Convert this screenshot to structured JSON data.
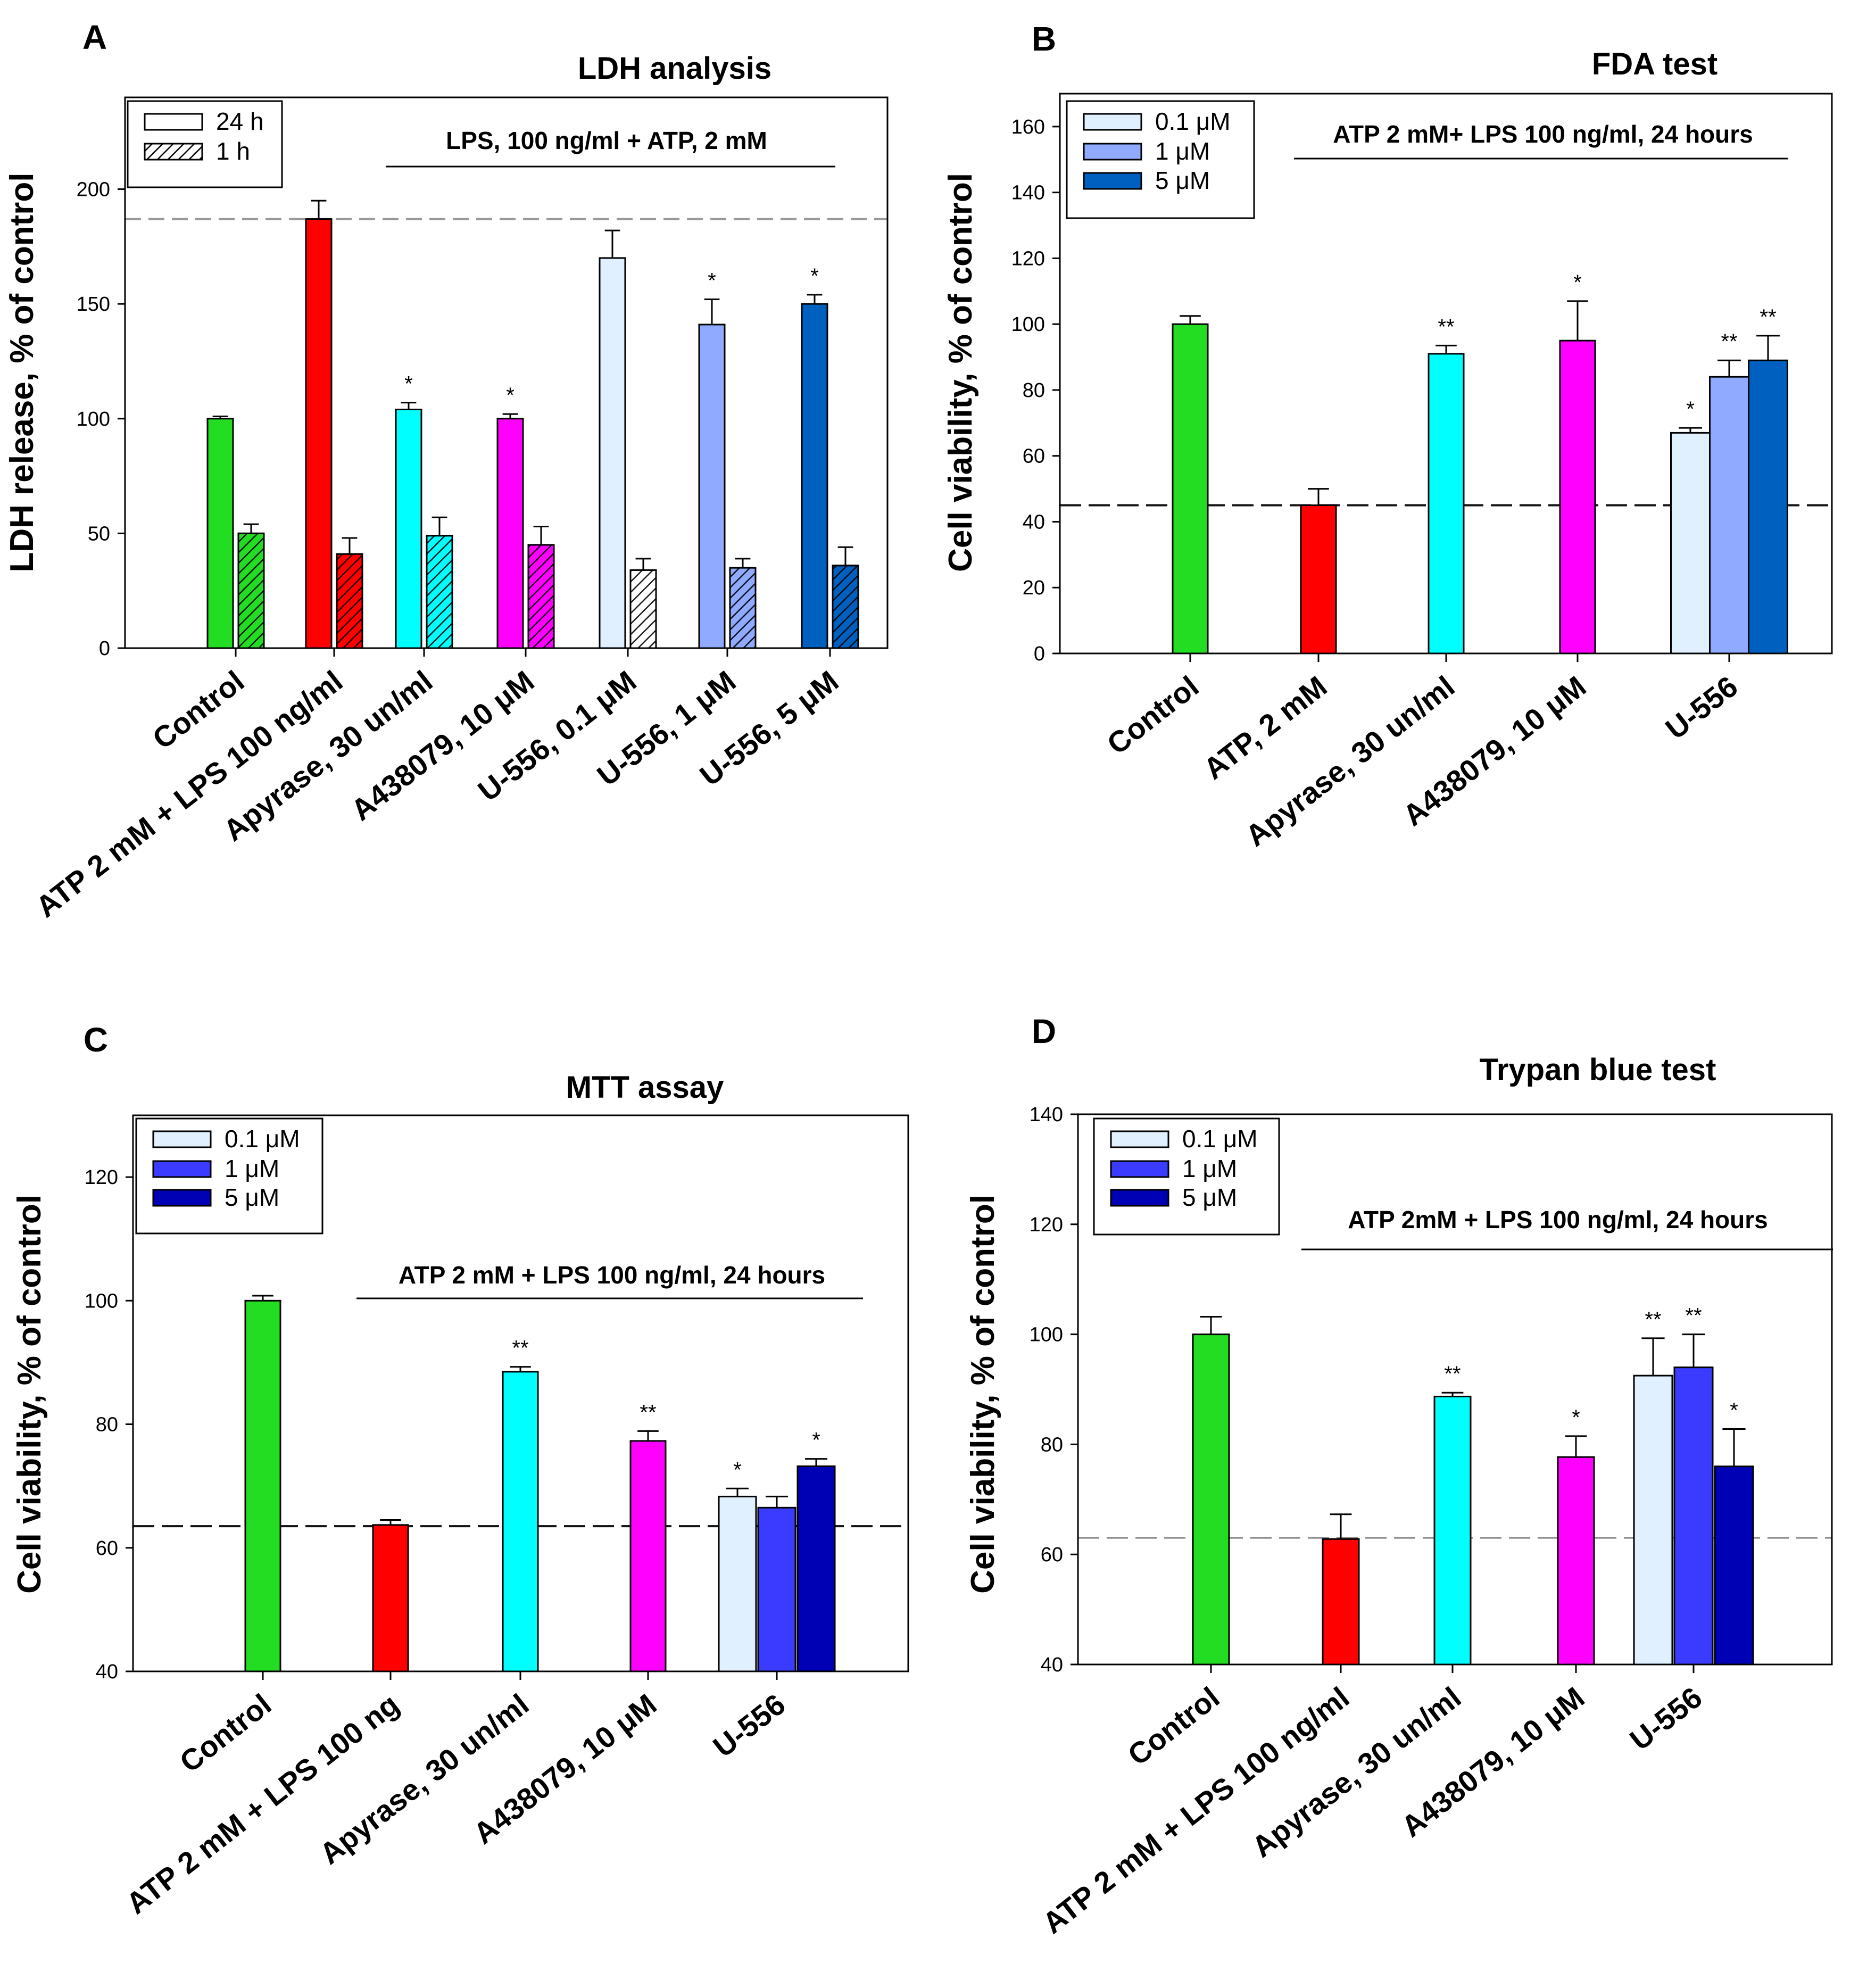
{
  "chart_data": [
    {
      "id": "A",
      "panel_label": "A",
      "type": "bar",
      "title": "LDH analysis",
      "ylabel": "LDH release, % of control",
      "ylim": [
        0,
        240
      ],
      "yticks": [
        0,
        50,
        100,
        150,
        200
      ],
      "reference_line": 187,
      "annotation": "LPS, 100 ng/ml + ATP, 2 mM",
      "legend": [
        {
          "label": "24 h",
          "color": "#ffffff",
          "pattern": "none"
        },
        {
          "label": "1 h",
          "color": "#ffffff",
          "pattern": "hatch"
        }
      ],
      "categories": [
        "Control",
        "ATP 2 mM + LPS 100 ng/ml",
        "Apyrase, 30 un/ml",
        "A438079,  10 μM",
        "U-556, 0.1 μM",
        "U-556, 1 μM",
        "U-556, 5 μM"
      ],
      "series": [
        {
          "name": "24 h",
          "pattern": "none",
          "values": [
            100,
            187,
            104,
            100,
            170,
            141,
            150
          ],
          "errors": [
            1,
            8,
            3,
            2,
            12,
            11,
            4
          ],
          "sig": [
            "",
            "",
            "*",
            "*",
            "",
            "*",
            "*"
          ],
          "colors": [
            "#22dd22",
            "#ff0000",
            "#00ffff",
            "#ff00ff",
            "#e0f0ff",
            "#8faaff",
            "#0060c0"
          ]
        },
        {
          "name": "1 h",
          "pattern": "hatch",
          "values": [
            50,
            41,
            49,
            45,
            34,
            35,
            36
          ],
          "errors": [
            4,
            7,
            8,
            8,
            5,
            4,
            8
          ],
          "sig": [
            "",
            "",
            "",
            "",
            "",
            "",
            ""
          ],
          "colors": [
            "#22dd22",
            "#ff0000",
            "#00ffff",
            "#ff00ff",
            "#ffffff",
            "#8faaff",
            "#0060c0"
          ]
        }
      ]
    },
    {
      "id": "B",
      "panel_label": "B",
      "type": "bar",
      "title": "FDA test",
      "ylabel": "Cell viability, % of control",
      "ylim": [
        0,
        170
      ],
      "yticks": [
        0,
        20,
        40,
        60,
        80,
        100,
        120,
        140,
        160
      ],
      "reference_line": 45,
      "annotation": "ATP 2 mM+ LPS 100 ng/ml, 24 hours",
      "legend": [
        {
          "label": "0.1 μM",
          "color": "#e0f0ff"
        },
        {
          "label": "1 μM",
          "color": "#8faaff"
        },
        {
          "label": "5  μM",
          "color": "#0060c0"
        }
      ],
      "categories": [
        "Control",
        "ATP, 2 mM",
        "Apyrase, 30 un/ml",
        "A438079, 10 μM",
        "U-556"
      ],
      "bars": [
        {
          "category": 0,
          "value": 100,
          "error": 2.5,
          "color": "#22dd22",
          "sig": ""
        },
        {
          "category": 1,
          "value": 45,
          "error": 5,
          "color": "#ff0000",
          "sig": ""
        },
        {
          "category": 2,
          "value": 91,
          "error": 2.5,
          "color": "#00ffff",
          "sig": "**"
        },
        {
          "category": 3,
          "value": 95,
          "error": 12,
          "color": "#ff00ff",
          "sig": "*"
        },
        {
          "category": 4,
          "group": [
            {
              "value": 67,
              "error": 1.5,
              "color": "#e0f0ff",
              "sig": "*"
            },
            {
              "value": 84,
              "error": 5,
              "color": "#8faaff",
              "sig": "**"
            },
            {
              "value": 89,
              "error": 7.5,
              "color": "#0060c0",
              "sig": "**"
            }
          ]
        }
      ]
    },
    {
      "id": "C",
      "panel_label": "C",
      "type": "bar",
      "title": "MTT assay",
      "ylabel": "Cell viability, % of control",
      "ylim": [
        40,
        130
      ],
      "yticks": [
        40,
        60,
        80,
        100,
        120
      ],
      "reference_line": 63.5,
      "annotation": "ATP 2 mM + LPS 100 ng/ml, 24 hours",
      "legend": [
        {
          "label": "0.1 μM",
          "color": "#e0f0ff"
        },
        {
          "label": "1 μM",
          "color": "#3b3bff"
        },
        {
          "label": "5 μM",
          "color": "#0000b4"
        }
      ],
      "categories": [
        "Control",
        "ATP 2 mM + LPS 100 ng",
        "Apyrase, 30 un/ml",
        "A438079, 10 μM",
        "U-556"
      ],
      "bars": [
        {
          "category": 0,
          "value": 100,
          "error": 0.8,
          "color": "#22dd22",
          "sig": ""
        },
        {
          "category": 1,
          "value": 63.7,
          "error": 0.8,
          "color": "#ff0000",
          "sig": ""
        },
        {
          "category": 2,
          "value": 88.5,
          "error": 0.8,
          "color": "#00ffff",
          "sig": "**"
        },
        {
          "category": 3,
          "value": 77.3,
          "error": 1.6,
          "color": "#ff00ff",
          "sig": "**"
        },
        {
          "category": 4,
          "group": [
            {
              "value": 68.3,
              "error": 1.3,
              "color": "#e0f0ff",
              "sig": "*"
            },
            {
              "value": 66.5,
              "error": 1.8,
              "color": "#3b3bff",
              "sig": ""
            },
            {
              "value": 73.2,
              "error": 1.2,
              "color": "#0000b4",
              "sig": "*"
            }
          ]
        }
      ]
    },
    {
      "id": "D",
      "panel_label": "D",
      "type": "bar",
      "title": "Trypan blue test",
      "ylabel": "Cell viability, % of control",
      "ylim": [
        40,
        140
      ],
      "yticks": [
        40,
        60,
        80,
        100,
        120,
        140
      ],
      "reference_line": 63,
      "annotation": "ATP 2mM + LPS 100 ng/ml, 24 hours",
      "legend": [
        {
          "label": "0.1 μM",
          "color": "#e0f0ff"
        },
        {
          "label": "1 μM",
          "color": "#3b3bff"
        },
        {
          "label": "5 μM",
          "color": "#0000b4"
        }
      ],
      "categories": [
        "Control",
        "ATP 2 mM + LPS 100 ng/ml",
        "Apyrase, 30 un/ml",
        "A438079, 10 μM",
        "U-556"
      ],
      "bars": [
        {
          "category": 0,
          "value": 100,
          "error": 3.2,
          "color": "#22dd22",
          "sig": ""
        },
        {
          "category": 1,
          "value": 62.8,
          "error": 4.5,
          "color": "#ff0000",
          "sig": ""
        },
        {
          "category": 2,
          "value": 88.7,
          "error": 0.7,
          "color": "#00ffff",
          "sig": "**"
        },
        {
          "category": 3,
          "value": 77.7,
          "error": 3.8,
          "color": "#ff00ff",
          "sig": "*"
        },
        {
          "category": 4,
          "group": [
            {
              "value": 92.5,
              "error": 6.8,
              "color": "#e0f0ff",
              "sig": "**"
            },
            {
              "value": 94,
              "error": 6,
              "color": "#3b3bff",
              "sig": "**"
            },
            {
              "value": 76,
              "error": 6.8,
              "color": "#0000b4",
              "sig": "*"
            }
          ]
        }
      ]
    }
  ]
}
